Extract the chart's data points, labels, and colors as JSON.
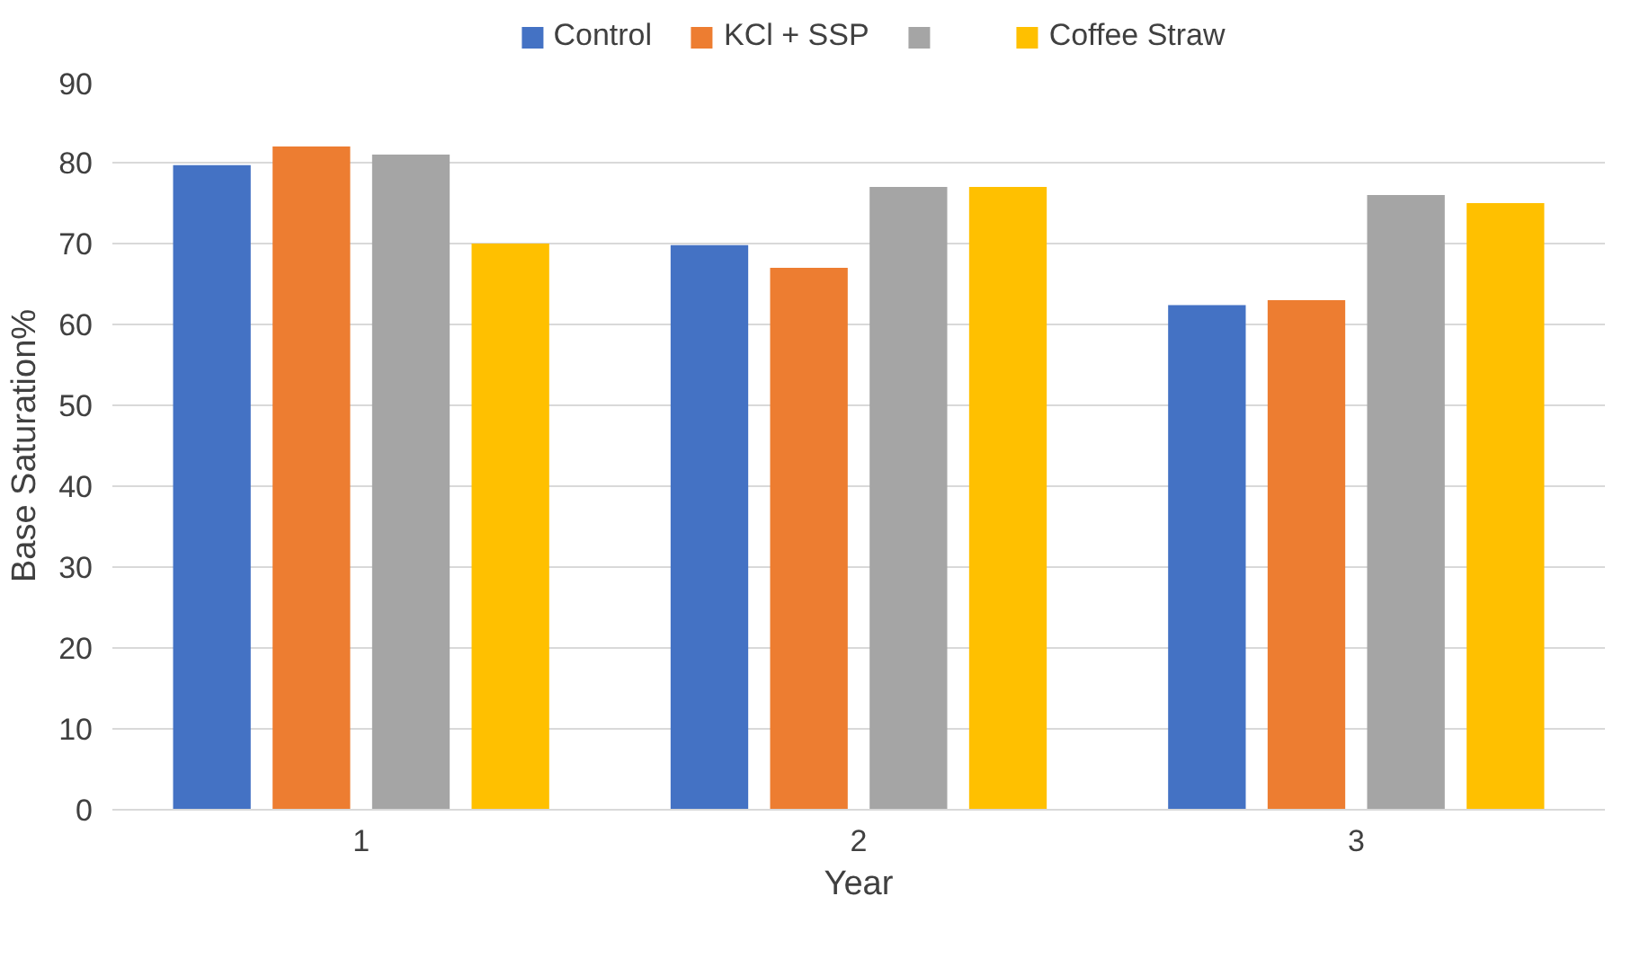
{
  "chart_data": {
    "type": "bar",
    "xlabel": "Year",
    "ylabel": "Base Saturation%",
    "categories": [
      "1",
      "2",
      "3"
    ],
    "series": [
      {
        "name": "Control",
        "color": "#4472c4",
        "values": [
          79.7,
          69.8,
          62.4
        ]
      },
      {
        "name": "KCl + SSP",
        "color": "#ed7d31",
        "values": [
          82,
          67,
          63
        ]
      },
      {
        "color": "#a5a5a5",
        "values": [
          81,
          77,
          76
        ]
      },
      {
        "name": "Coffee Straw",
        "color": "#ffc000",
        "values": [
          70,
          77,
          75
        ]
      }
    ],
    "ylim": [
      0,
      90
    ],
    "yticks": [
      0,
      10,
      20,
      30,
      40,
      50,
      60,
      70,
      80,
      90
    ],
    "grid": "y",
    "legend": "top"
  }
}
